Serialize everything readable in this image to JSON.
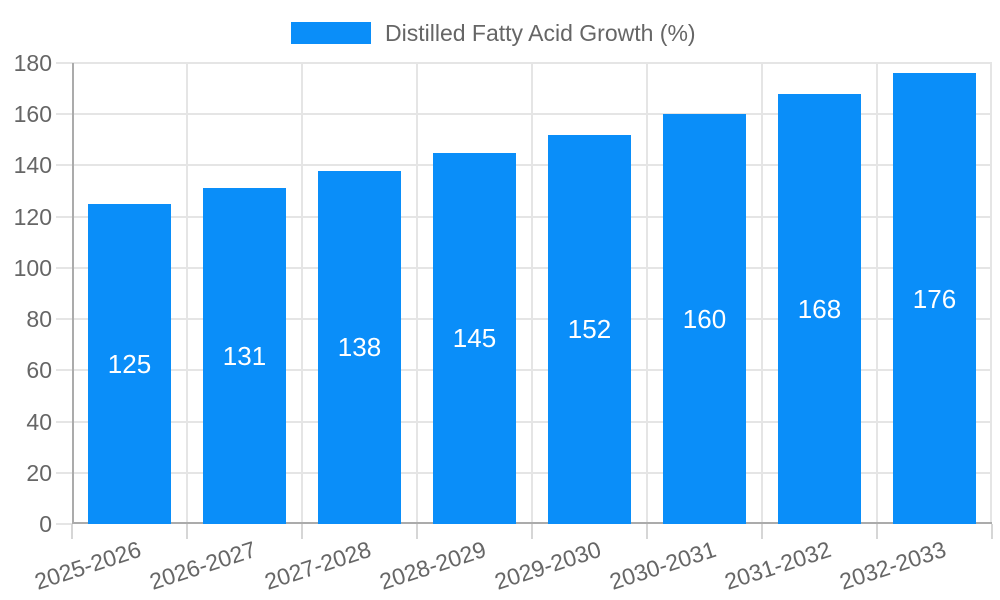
{
  "chart_data": {
    "type": "bar",
    "title": "",
    "legend_label": "Distilled Fatty Acid Growth (%)",
    "legend_position": "top-center",
    "categories": [
      "2025-2026",
      "2026-2027",
      "2027-2028",
      "2028-2029",
      "2029-2030",
      "2030-2031",
      "2031-2032",
      "2032-2033"
    ],
    "values": [
      125,
      131,
      138,
      145,
      152,
      160,
      168,
      176
    ],
    "xlabel": "",
    "ylabel": "",
    "ylim": [
      0,
      180
    ],
    "ytick_step": 20,
    "yticks": [
      0,
      20,
      40,
      60,
      80,
      100,
      120,
      140,
      160,
      180
    ],
    "grid": true,
    "x_label_rotation_deg": -18,
    "value_label_position": "center-of-bar",
    "colors": {
      "bar": "#0a8ef9",
      "value_label": "#ffffff",
      "axis_text": "#666666",
      "gridline": "#e5e5e5",
      "axis_line": "#ababab"
    }
  }
}
